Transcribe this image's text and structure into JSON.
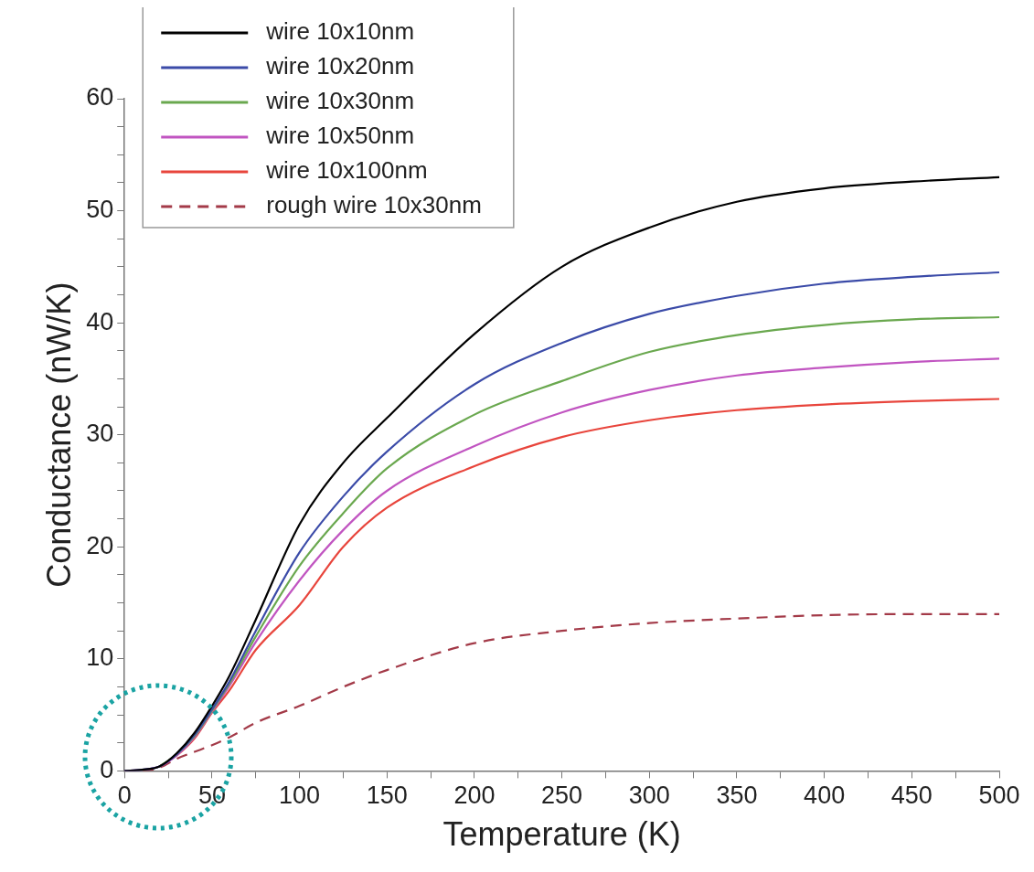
{
  "chart_data": {
    "type": "line",
    "xlabel": "Temperature (K)",
    "ylabel": "Conductance (nW/K)",
    "xlim": [
      0,
      500
    ],
    "ylim": [
      0,
      60
    ],
    "xticks": [
      0,
      {
        "value": 25,
        "label": null
      },
      50,
      {
        "value": 75,
        "label": null
      },
      100,
      {
        "value": 125,
        "label": null
      },
      150,
      {
        "value": 175,
        "label": null
      },
      200,
      {
        "value": 225,
        "label": null
      },
      250,
      {
        "value": 275,
        "label": null
      },
      300,
      {
        "value": 325,
        "label": null
      },
      350,
      {
        "value": 375,
        "label": null
      },
      400,
      {
        "value": 425,
        "label": null
      },
      450,
      {
        "value": 475,
        "label": null
      },
      500
    ],
    "yticks": [
      0,
      {
        "value": 2.5,
        "label": null
      },
      {
        "value": 5,
        "label": null
      },
      {
        "value": 7.5,
        "label": null
      },
      10,
      {
        "value": 12.5,
        "label": null
      },
      {
        "value": 15,
        "label": null
      },
      {
        "value": 17.5,
        "label": null
      },
      20,
      {
        "value": 22.5,
        "label": null
      },
      {
        "value": 25,
        "label": null
      },
      {
        "value": 27.5,
        "label": null
      },
      30,
      {
        "value": 32.5,
        "label": null
      },
      {
        "value": 35,
        "label": null
      },
      {
        "value": 37.5,
        "label": null
      },
      40,
      {
        "value": 42.5,
        "label": null
      },
      {
        "value": 45,
        "label": null
      },
      {
        "value": 47.5,
        "label": null
      },
      50,
      {
        "value": 52.5,
        "label": null
      },
      {
        "value": 55,
        "label": null
      },
      {
        "value": 57.5,
        "label": null
      },
      60
    ],
    "grid": false,
    "legend": "top left",
    "marker": "none",
    "x": [
      0,
      10,
      20,
      30,
      40,
      50,
      60,
      75,
      100,
      125,
      150,
      200,
      250,
      300,
      350,
      400,
      450,
      500
    ],
    "series": [
      {
        "name": "wire 10x10nm",
        "color": "#000000",
        "line_style": "solid",
        "values": [
          0,
          0.1,
          0.4,
          1.6,
          3.4,
          5.8,
          8.5,
          13.5,
          22,
          27.5,
          31.5,
          39,
          45,
          48.5,
          50.8,
          52,
          52.6,
          53
        ]
      },
      {
        "name": "wire 10x20nm",
        "color": "#3b4ba8",
        "line_style": "solid",
        "values": [
          0,
          0.1,
          0.4,
          1.5,
          3.2,
          5.5,
          8,
          12.5,
          19.5,
          24.5,
          28.5,
          34.5,
          38.2,
          40.8,
          42.4,
          43.5,
          44.1,
          44.5
        ]
      },
      {
        "name": "wire 10x30nm",
        "color": "#6aa84f",
        "line_style": "solid",
        "values": [
          null,
          null,
          0.4,
          1.5,
          3.1,
          5.4,
          7.8,
          12,
          18.3,
          23,
          27,
          31.8,
          34.8,
          37.4,
          38.9,
          39.8,
          40.3,
          40.5
        ]
      },
      {
        "name": "wire 10x50nm",
        "color": "#c155c1",
        "line_style": "solid",
        "values": [
          0,
          0.1,
          0.4,
          1.4,
          3,
          5.3,
          7.6,
          11.5,
          17,
          21.5,
          25,
          29,
          32,
          34,
          35.3,
          36,
          36.5,
          36.8
        ]
      },
      {
        "name": "wire 10x100nm",
        "color": "#e8453c",
        "line_style": "solid",
        "values": [
          null,
          null,
          0.4,
          1.4,
          2.9,
          5.2,
          7.2,
          10.8,
          14.8,
          20,
          23.5,
          27.2,
          29.8,
          31.3,
          32.2,
          32.7,
          33,
          33.2
        ]
      },
      {
        "name": "rough wire 10x30nm",
        "color": "#a33a48",
        "line_style": "dashed",
        "values": [
          0,
          0,
          0.3,
          1.1,
          1.7,
          2.3,
          3,
          4.3,
          5.8,
          7.5,
          9,
          11.4,
          12.5,
          13.2,
          13.6,
          13.9,
          14,
          14
        ]
      }
    ]
  }
}
